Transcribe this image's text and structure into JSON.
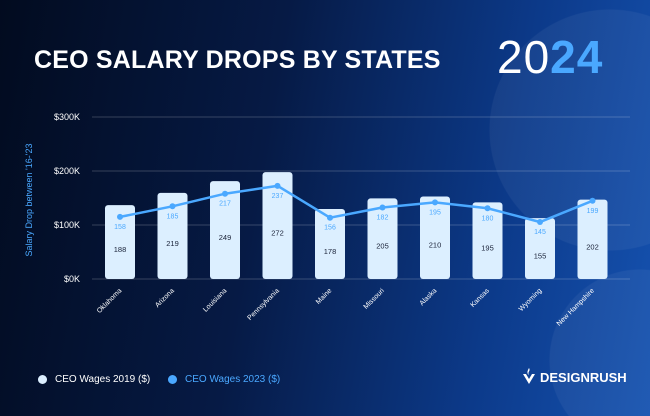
{
  "header": {
    "title": "CEO SALARY DROPS BY STATES",
    "year_light": "20",
    "year_bold": "24"
  },
  "chart_data": {
    "type": "bar+line",
    "ylabel": "Salary Drop between '16-'23",
    "yticks": [
      "$0K",
      "$100K",
      "$200K",
      "$300K"
    ],
    "grid": true,
    "categories": [
      "Oklahoma",
      "Arizona",
      "Louisiana",
      "Pennsylvania",
      "Maine",
      "Missouri",
      "Alaska",
      "Kansas",
      "Wyoming",
      "New Hampshire"
    ],
    "series": [
      {
        "name": "CEO Wages 2019 ($)",
        "type": "bar",
        "color": "#dcefff",
        "values": [
          188,
          219,
          249,
          272,
          178,
          205,
          210,
          195,
          155,
          202
        ]
      },
      {
        "name": "CEO Wages 2023 ($)",
        "type": "line",
        "color": "#4aa8ff",
        "values": [
          158,
          185,
          217,
          237,
          156,
          182,
          195,
          180,
          145,
          199
        ]
      }
    ],
    "legend_position": "bottom-left"
  },
  "brand": {
    "name": "DESIGNRUSH"
  }
}
